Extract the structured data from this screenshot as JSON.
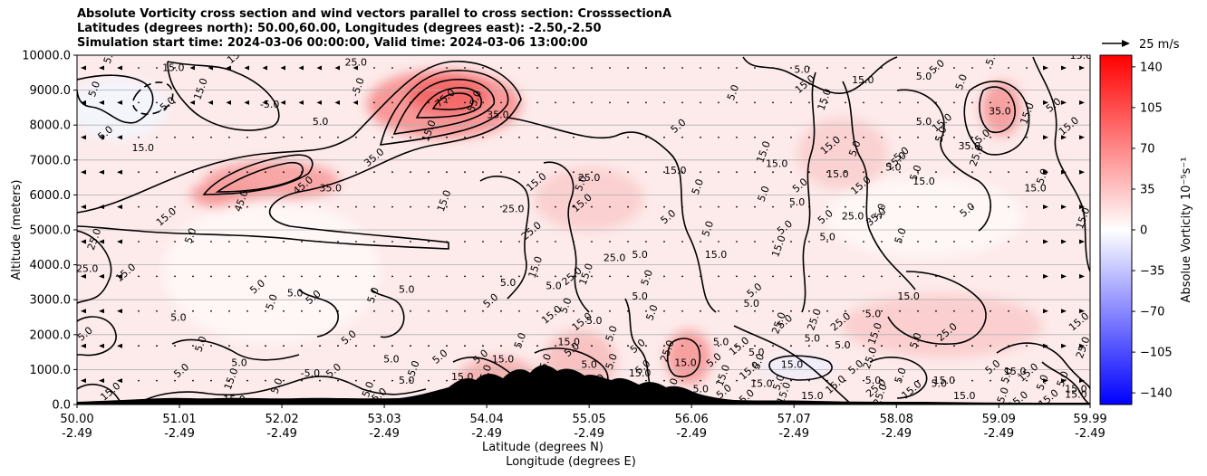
{
  "chart_data": {
    "type": "heatmap",
    "title_lines": [
      "Absolute Vorticity cross section and wind vectors parallel to cross section: CrosssectionA",
      "Latitudes (degrees north): 50.00,60.00, Longitudes (degrees east): -2.50,-2.50",
      "Simulation start time: 2024-03-06 00:00:00, Valid time: 2024-03-06 13:00:00"
    ],
    "ylabel": "Altitude (meters)",
    "xlabel_lines": [
      "Latitude (degrees N)",
      "Longitude (degrees E)"
    ],
    "ylim": [
      0,
      10000
    ],
    "xlim": [
      50.0,
      59.99
    ],
    "y_ticks": [
      "0.0",
      "1000.0",
      "2000.0",
      "3000.0",
      "4000.0",
      "5000.0",
      "6000.0",
      "7000.0",
      "8000.0",
      "9000.0",
      "10000.0"
    ],
    "x_ticks": [
      {
        "lat": "50.00",
        "lon": "-2.49"
      },
      {
        "lat": "51.01",
        "lon": "-2.49"
      },
      {
        "lat": "52.02",
        "lon": "-2.49"
      },
      {
        "lat": "53.03",
        "lon": "-2.49"
      },
      {
        "lat": "54.04",
        "lon": "-2.49"
      },
      {
        "lat": "55.05",
        "lon": "-2.49"
      },
      {
        "lat": "56.06",
        "lon": "-2.49"
      },
      {
        "lat": "57.07",
        "lon": "-2.49"
      },
      {
        "lat": "58.08",
        "lon": "-2.49"
      },
      {
        "lat": "59.09",
        "lon": "-2.49"
      },
      {
        "lat": "59.99",
        "lon": "-2.49"
      }
    ],
    "grid": "horizontal",
    "colorbar": {
      "label": "Absolue Vorticity 10$^{-5}$s$^{-1}$",
      "label_display": "Absolue Vorticity 10⁻⁵s⁻¹",
      "range": [
        -150,
        150
      ],
      "ticks": [
        140,
        105,
        70,
        35,
        0,
        -35,
        -70,
        -105,
        -140
      ],
      "tick_labels": [
        "140",
        "105",
        "70",
        "35",
        "0",
        "−35",
        "−70",
        "−105",
        "−140"
      ],
      "colormap": "bwr",
      "colors": {
        "low": "#0000ff",
        "mid": "#ffffff",
        "high": "#ff0000"
      }
    },
    "quiver_key": "25 m/s",
    "contour_labels": [
      {
        "text": "5.0",
        "lat": 50.35,
        "alt": 9950
      },
      {
        "text": "15.0",
        "lat": 50.95,
        "alt": 9550
      },
      {
        "text": "15.0",
        "lat": 51.6,
        "alt": 9950
      },
      {
        "text": "-5.0",
        "lat": 52.8,
        "alt": 9050
      },
      {
        "text": "-5.0",
        "lat": 51.9,
        "alt": 8500
      },
      {
        "text": "-5.0",
        "lat": 50.9,
        "alt": 8500
      },
      {
        "text": "5.0",
        "lat": 50.2,
        "alt": 9000
      },
      {
        "text": "15.0",
        "lat": 50.65,
        "alt": 7250
      },
      {
        "text": "5.0",
        "lat": 50.3,
        "alt": 7700
      },
      {
        "text": "15.0",
        "lat": 51.25,
        "alt": 9000
      },
      {
        "text": "25.0",
        "lat": 52.75,
        "alt": 9700
      },
      {
        "text": "75.0",
        "lat": 53.65,
        "alt": 8700
      },
      {
        "text": "55.0",
        "lat": 53.95,
        "alt": 8650
      },
      {
        "text": "35.0",
        "lat": 54.15,
        "alt": 8200
      },
      {
        "text": "45.0",
        "lat": 52.25,
        "alt": 6200
      },
      {
        "text": "45.0",
        "lat": 51.65,
        "alt": 5800
      },
      {
        "text": "35.0",
        "lat": 52.5,
        "alt": 6100
      },
      {
        "text": "35.0",
        "lat": 52.95,
        "alt": 7000
      },
      {
        "text": "15.0",
        "lat": 53.5,
        "alt": 7800
      },
      {
        "text": "5.0",
        "lat": 52.4,
        "alt": 8000
      },
      {
        "text": "15.0",
        "lat": 50.9,
        "alt": 5300
      },
      {
        "text": "25.0",
        "lat": 50.2,
        "alt": 4700
      },
      {
        "text": "25.0",
        "lat": 50.1,
        "alt": 3800
      },
      {
        "text": "15.0",
        "lat": 50.5,
        "alt": 3700
      },
      {
        "text": "5.0",
        "lat": 51.15,
        "alt": 4800
      },
      {
        "text": "5.0",
        "lat": 51.0,
        "alt": 2400
      },
      {
        "text": "5.0",
        "lat": 51.8,
        "alt": 3300
      },
      {
        "text": "5.0",
        "lat": 51.95,
        "alt": 2900
      },
      {
        "text": "5.0",
        "lat": 52.15,
        "alt": 3100
      },
      {
        "text": "5.0",
        "lat": 52.35,
        "alt": 3000
      },
      {
        "text": "5.0",
        "lat": 52.95,
        "alt": 3100
      },
      {
        "text": "5.0",
        "lat": 53.25,
        "alt": 3200
      },
      {
        "text": "5.0",
        "lat": 52.7,
        "alt": 1850
      },
      {
        "text": "5.0",
        "lat": 51.25,
        "alt": 1700
      },
      {
        "text": "5.0",
        "lat": 51.6,
        "alt": 1100
      },
      {
        "text": "5.0",
        "lat": 51.05,
        "alt": 900
      },
      {
        "text": "15.0",
        "lat": 51.55,
        "alt": 700
      },
      {
        "text": "15.0",
        "lat": 51.55,
        "alt": 50
      },
      {
        "text": "15.0",
        "lat": 50.35,
        "alt": 300
      },
      {
        "text": "5.0",
        "lat": 52.0,
        "alt": 500
      },
      {
        "text": "-5.0",
        "lat": 52.3,
        "alt": 800
      },
      {
        "text": "5.0",
        "lat": 50.1,
        "alt": 1950
      },
      {
        "text": "15.0",
        "lat": 53.65,
        "alt": 5800
      },
      {
        "text": "25.0",
        "lat": 54.3,
        "alt": 5500
      },
      {
        "text": "15.0",
        "lat": 54.55,
        "alt": 6300
      },
      {
        "text": "5.0",
        "lat": 55.0,
        "alt": 6300
      },
      {
        "text": "25.0",
        "lat": 55.05,
        "alt": 6400
      },
      {
        "text": "25.0",
        "lat": 54.5,
        "alt": 4900
      },
      {
        "text": "15.0",
        "lat": 54.55,
        "alt": 3900
      },
      {
        "text": "5.0",
        "lat": 54.25,
        "alt": 3400
      },
      {
        "text": "5.0",
        "lat": 54.1,
        "alt": 2900
      },
      {
        "text": "15.0",
        "lat": 55.05,
        "alt": 3700
      },
      {
        "text": "25.0",
        "lat": 55.3,
        "alt": 4100
      },
      {
        "text": "15.0",
        "lat": 55.0,
        "alt": 5700
      },
      {
        "text": "5.0",
        "lat": 55.7,
        "alt": 2600
      },
      {
        "text": "5.0",
        "lat": 55.55,
        "alt": 3000
      },
      {
        "text": "15.0",
        "lat": 54.7,
        "alt": 2500
      },
      {
        "text": "5.0",
        "lat": 54.4,
        "alt": 1800
      },
      {
        "text": "15.0",
        "lat": 54.85,
        "alt": 1700
      },
      {
        "text": "5.0",
        "lat": 55.55,
        "alt": 1600
      },
      {
        "text": "25.0",
        "lat": 55.85,
        "alt": 1500
      },
      {
        "text": "5.0",
        "lat": 56.35,
        "alt": 1700
      },
      {
        "text": "15.0",
        "lat": 56.55,
        "alt": 1600
      },
      {
        "text": "5.0",
        "lat": 56.15,
        "alt": 6200
      },
      {
        "text": "15.0",
        "lat": 55.9,
        "alt": 6600
      },
      {
        "text": "5.0",
        "lat": 55.85,
        "alt": 5300
      },
      {
        "text": "5.0",
        "lat": 56.25,
        "alt": 5000
      },
      {
        "text": "15.0",
        "lat": 56.3,
        "alt": 4200
      },
      {
        "text": "5.0",
        "lat": 55.95,
        "alt": 7900
      },
      {
        "text": "5.0",
        "lat": 56.5,
        "alt": 8900
      },
      {
        "text": "5.0",
        "lat": 57.15,
        "alt": 9500
      },
      {
        "text": "15.0",
        "lat": 57.2,
        "alt": 9100
      },
      {
        "text": "15.0",
        "lat": 57.4,
        "alt": 8700
      },
      {
        "text": "15.0",
        "lat": 57.75,
        "alt": 9200
      },
      {
        "text": "15.0",
        "lat": 57.45,
        "alt": 7350
      },
      {
        "text": "15.0",
        "lat": 56.8,
        "alt": 7200
      },
      {
        "text": "15.0",
        "lat": 56.9,
        "alt": 6800
      },
      {
        "text": "5.0",
        "lat": 57.15,
        "alt": 6200
      },
      {
        "text": "5.0",
        "lat": 56.8,
        "alt": 6000
      },
      {
        "text": "5.0",
        "lat": 57.1,
        "alt": 5700
      },
      {
        "text": "5.0",
        "lat": 57.0,
        "alt": 5000
      },
      {
        "text": "15.0",
        "lat": 56.95,
        "alt": 4500
      },
      {
        "text": "5.0",
        "lat": 57.4,
        "alt": 4700
      },
      {
        "text": "5.0",
        "lat": 57.4,
        "alt": 5300
      },
      {
        "text": "5.0",
        "lat": 57.7,
        "alt": 7300
      },
      {
        "text": "15.0",
        "lat": 57.5,
        "alt": 6500
      },
      {
        "text": "15.0",
        "lat": 57.75,
        "alt": 6200
      },
      {
        "text": "5.0",
        "lat": 57.95,
        "alt": 5500
      },
      {
        "text": "25.0",
        "lat": 57.65,
        "alt": 5300
      },
      {
        "text": "35.0",
        "lat": 57.9,
        "alt": 5300
      },
      {
        "text": "5.0",
        "lat": 58.15,
        "alt": 4800
      },
      {
        "text": "5.0",
        "lat": 58.05,
        "alt": 6700
      },
      {
        "text": "5.0",
        "lat": 58.15,
        "alt": 7100
      },
      {
        "text": "5.0",
        "lat": 58.3,
        "alt": 6600
      },
      {
        "text": "15.0",
        "lat": 58.35,
        "alt": 6300
      },
      {
        "text": "25.0",
        "lat": 58.1,
        "alt": 6900
      },
      {
        "text": "5.0",
        "lat": 58.55,
        "alt": 7700
      },
      {
        "text": "5.0",
        "lat": 58.35,
        "alt": 8000
      },
      {
        "text": "15.0",
        "lat": 58.55,
        "alt": 8000
      },
      {
        "text": "5.0",
        "lat": 58.75,
        "alt": 9200
      },
      {
        "text": "5.0",
        "lat": 58.35,
        "alt": 9300
      },
      {
        "text": "5.0",
        "lat": 58.5,
        "alt": 9600
      },
      {
        "text": "5.0",
        "lat": 59.05,
        "alt": 9900
      },
      {
        "text": "15.0",
        "lat": 59.9,
        "alt": 9900
      },
      {
        "text": "5.0",
        "lat": 59.65,
        "alt": 8500
      },
      {
        "text": "15.0",
        "lat": 59.4,
        "alt": 8300
      },
      {
        "text": "35.0",
        "lat": 59.1,
        "alt": 8300
      },
      {
        "text": "5.0",
        "lat": 58.95,
        "alt": 7600
      },
      {
        "text": "25.0",
        "lat": 58.9,
        "alt": 7100
      },
      {
        "text": "35.0",
        "lat": 58.8,
        "alt": 7300
      },
      {
        "text": "15.0",
        "lat": 59.8,
        "alt": 7900
      },
      {
        "text": "5.0",
        "lat": 59.55,
        "alt": 6500
      },
      {
        "text": "15.0",
        "lat": 59.45,
        "alt": 6100
      },
      {
        "text": "5.0",
        "lat": 58.8,
        "alt": 5500
      },
      {
        "text": "15.0",
        "lat": 59.95,
        "alt": 5300
      },
      {
        "text": "15.0",
        "lat": 58.2,
        "alt": 3000
      },
      {
        "text": "25.0",
        "lat": 58.6,
        "alt": 2000
      },
      {
        "text": "5.0",
        "lat": 58.3,
        "alt": 1800
      },
      {
        "text": "5.0",
        "lat": 57.85,
        "alt": 2500
      },
      {
        "text": "25.0",
        "lat": 57.55,
        "alt": 2300
      },
      {
        "text": "25.0",
        "lat": 57.3,
        "alt": 2400
      },
      {
        "text": "5.0",
        "lat": 57.25,
        "alt": 1800
      },
      {
        "text": "5.0",
        "lat": 57.0,
        "alt": 2300
      },
      {
        "text": "25.0",
        "lat": 56.95,
        "alt": 2300
      },
      {
        "text": "5.0",
        "lat": 56.65,
        "alt": 2800
      },
      {
        "text": "5.0",
        "lat": 56.7,
        "alt": 3200
      },
      {
        "text": "15.0",
        "lat": 57.9,
        "alt": 2000
      },
      {
        "text": "5.0",
        "lat": 57.55,
        "alt": 1600
      },
      {
        "text": "5.0",
        "lat": 57.7,
        "alt": 1000
      },
      {
        "text": "25.0",
        "lat": 57.85,
        "alt": 1300
      },
      {
        "text": "5.0",
        "lat": 57.85,
        "alt": 600
      },
      {
        "text": "25.0",
        "lat": 57.9,
        "alt": 400
      },
      {
        "text": "25.0",
        "lat": 57.95,
        "alt": 250
      },
      {
        "text": "5.0",
        "lat": 56.7,
        "alt": 1400
      },
      {
        "text": "15.0",
        "lat": 56.65,
        "alt": 900
      },
      {
        "text": "5.0",
        "lat": 56.75,
        "alt": 1200
      },
      {
        "text": "15.0",
        "lat": 56.75,
        "alt": 500
      },
      {
        "text": "15.0",
        "lat": 56.6,
        "alt": 100
      },
      {
        "text": "5.0",
        "lat": 56.95,
        "alt": 600
      },
      {
        "text": "15.0",
        "lat": 57.05,
        "alt": 1050
      },
      {
        "text": "15.0",
        "lat": 57.5,
        "alt": 500
      },
      {
        "text": "5.0",
        "lat": 58.15,
        "alt": 800
      },
      {
        "text": "15.0",
        "lat": 58.55,
        "alt": 600
      },
      {
        "text": "5.0",
        "lat": 59.05,
        "alt": 1000
      },
      {
        "text": "5.0",
        "lat": 59.2,
        "alt": 800
      },
      {
        "text": "15.0",
        "lat": 59.25,
        "alt": 850
      },
      {
        "text": "15.0",
        "lat": 59.4,
        "alt": 850
      },
      {
        "text": "5.0",
        "lat": 59.55,
        "alt": 600
      },
      {
        "text": "15.0",
        "lat": 59.85,
        "alt": 200
      },
      {
        "text": "15.0",
        "lat": 59.3,
        "alt": 50
      },
      {
        "text": "15.0",
        "lat": 59.15,
        "alt": 150
      },
      {
        "text": "15.0",
        "lat": 58.75,
        "alt": 150
      },
      {
        "text": "15.0",
        "lat": 59.6,
        "alt": 100
      },
      {
        "text": "5.0",
        "lat": 59.75,
        "alt": 700
      },
      {
        "text": "15.0",
        "lat": 59.85,
        "alt": 350
      },
      {
        "text": "15.0",
        "lat": 59.9,
        "alt": 2300
      },
      {
        "text": "25.0",
        "lat": 59.95,
        "alt": 1600
      },
      {
        "text": "5.0",
        "lat": 58.5,
        "alt": 500
      },
      {
        "text": "15.0",
        "lat": 58.25,
        "alt": 350
      },
      {
        "text": "15.0",
        "lat": 57.0,
        "alt": 300
      },
      {
        "text": "15.0",
        "lat": 57.25,
        "alt": 150
      },
      {
        "text": "5.0",
        "lat": 56.4,
        "alt": 300
      },
      {
        "text": "15.0",
        "lat": 56.4,
        "alt": 800
      },
      {
        "text": "15.0",
        "lat": 56.0,
        "alt": 1100
      },
      {
        "text": "5.0",
        "lat": 55.6,
        "alt": 1000
      },
      {
        "text": "5.0",
        "lat": 55.3,
        "alt": 1200
      },
      {
        "text": "5.0",
        "lat": 55.05,
        "alt": 1050
      },
      {
        "text": "5.0",
        "lat": 54.9,
        "alt": 1500
      },
      {
        "text": "5.0",
        "lat": 54.65,
        "alt": 1200
      },
      {
        "text": "15.0",
        "lat": 54.2,
        "alt": 1200
      },
      {
        "text": "5.0",
        "lat": 54.0,
        "alt": 1300
      },
      {
        "text": "25.0",
        "lat": 54.05,
        "alt": 800
      },
      {
        "text": "15.0",
        "lat": 53.8,
        "alt": 700
      },
      {
        "text": "5.0",
        "lat": 53.6,
        "alt": 1300
      },
      {
        "text": "5.0",
        "lat": 53.35,
        "alt": 1000
      },
      {
        "text": "5.0",
        "lat": 53.25,
        "alt": 600
      },
      {
        "text": "5.0",
        "lat": 53.0,
        "alt": 200
      },
      {
        "text": "5.0",
        "lat": 52.9,
        "alt": 400
      },
      {
        "text": "5.0",
        "lat": 53.1,
        "alt": 1200
      },
      {
        "text": "5.0",
        "lat": 52.55,
        "alt": 900
      },
      {
        "text": "15.0",
        "lat": 54.35,
        "alt": 500
      },
      {
        "text": "15.0",
        "lat": 54.55,
        "alt": 300
      },
      {
        "text": "5.0",
        "lat": 55.15,
        "alt": 600
      },
      {
        "text": "5.0",
        "lat": 55.35,
        "alt": 500
      },
      {
        "text": "15.0",
        "lat": 55.55,
        "alt": 800
      },
      {
        "text": "5.0",
        "lat": 55.75,
        "alt": 200
      },
      {
        "text": "5.0",
        "lat": 55.9,
        "alt": 500
      },
      {
        "text": "5.0",
        "lat": 56.15,
        "alt": 350
      },
      {
        "text": "5.0",
        "lat": 56.3,
        "alt": 1200
      },
      {
        "text": "5.0",
        "lat": 55.3,
        "alt": 2000
      },
      {
        "text": "5.0",
        "lat": 55.1,
        "alt": 2300
      },
      {
        "text": "15.0",
        "lat": 55.0,
        "alt": 2300
      },
      {
        "text": "5.0",
        "lat": 54.85,
        "alt": 2800
      },
      {
        "text": "5.0",
        "lat": 54.7,
        "alt": 3300
      },
      {
        "text": "25.0",
        "lat": 54.9,
        "alt": 3600
      },
      {
        "text": "5.0",
        "lat": 55.65,
        "alt": 3600
      },
      {
        "text": "5.0",
        "lat": 55.55,
        "alt": 4200
      }
    ]
  }
}
